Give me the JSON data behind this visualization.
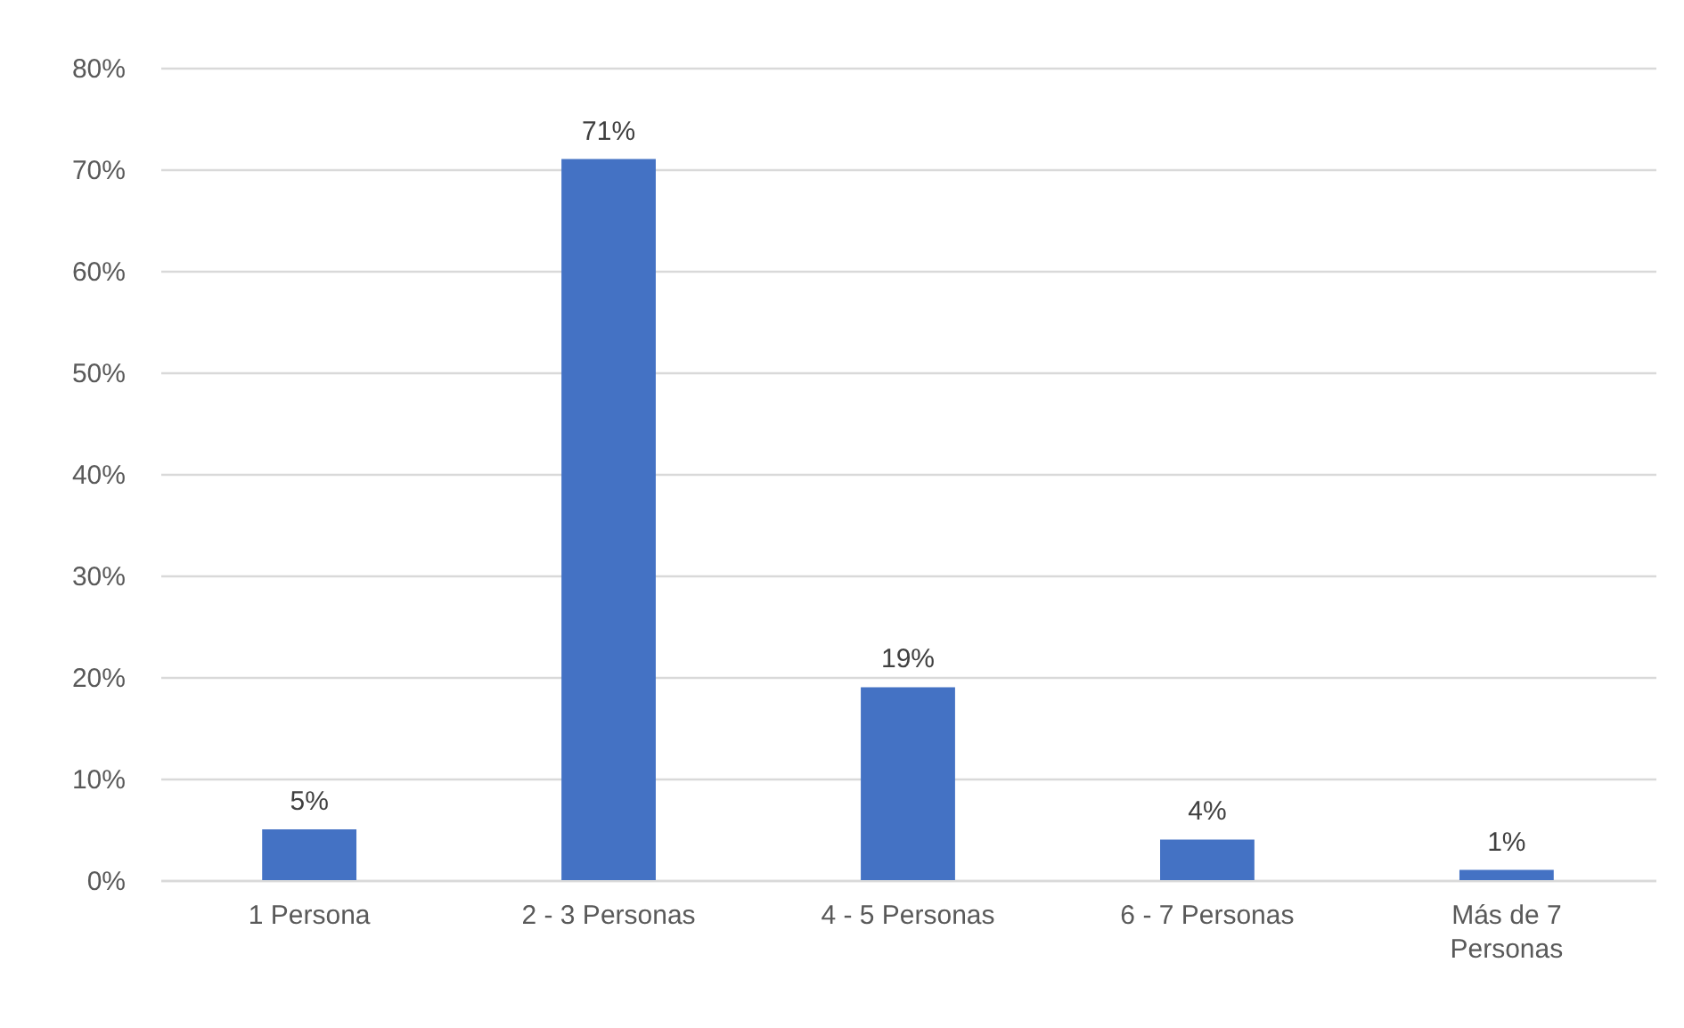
{
  "chart_data": {
    "type": "bar",
    "categories": [
      "1 Persona",
      "2 - 3 Personas",
      "4 - 5 Personas",
      "6 - 7 Personas",
      "Más de 7 Personas"
    ],
    "values": [
      5,
      71,
      19,
      4,
      1
    ],
    "value_labels": [
      "5%",
      "71%",
      "19%",
      "4%",
      "1%"
    ],
    "color": "#4472c4",
    "ylim": [
      0,
      80
    ],
    "yticks": [
      {
        "value": 0,
        "label": "0%"
      },
      {
        "value": 10,
        "label": "10%"
      },
      {
        "value": 20,
        "label": "20%"
      },
      {
        "value": 30,
        "label": "30%"
      },
      {
        "value": 40,
        "label": "40%"
      },
      {
        "value": 50,
        "label": "50%"
      },
      {
        "value": 60,
        "label": "60%"
      },
      {
        "value": 70,
        "label": "70%"
      },
      {
        "value": 80,
        "label": "80%"
      }
    ],
    "grid": "y"
  }
}
